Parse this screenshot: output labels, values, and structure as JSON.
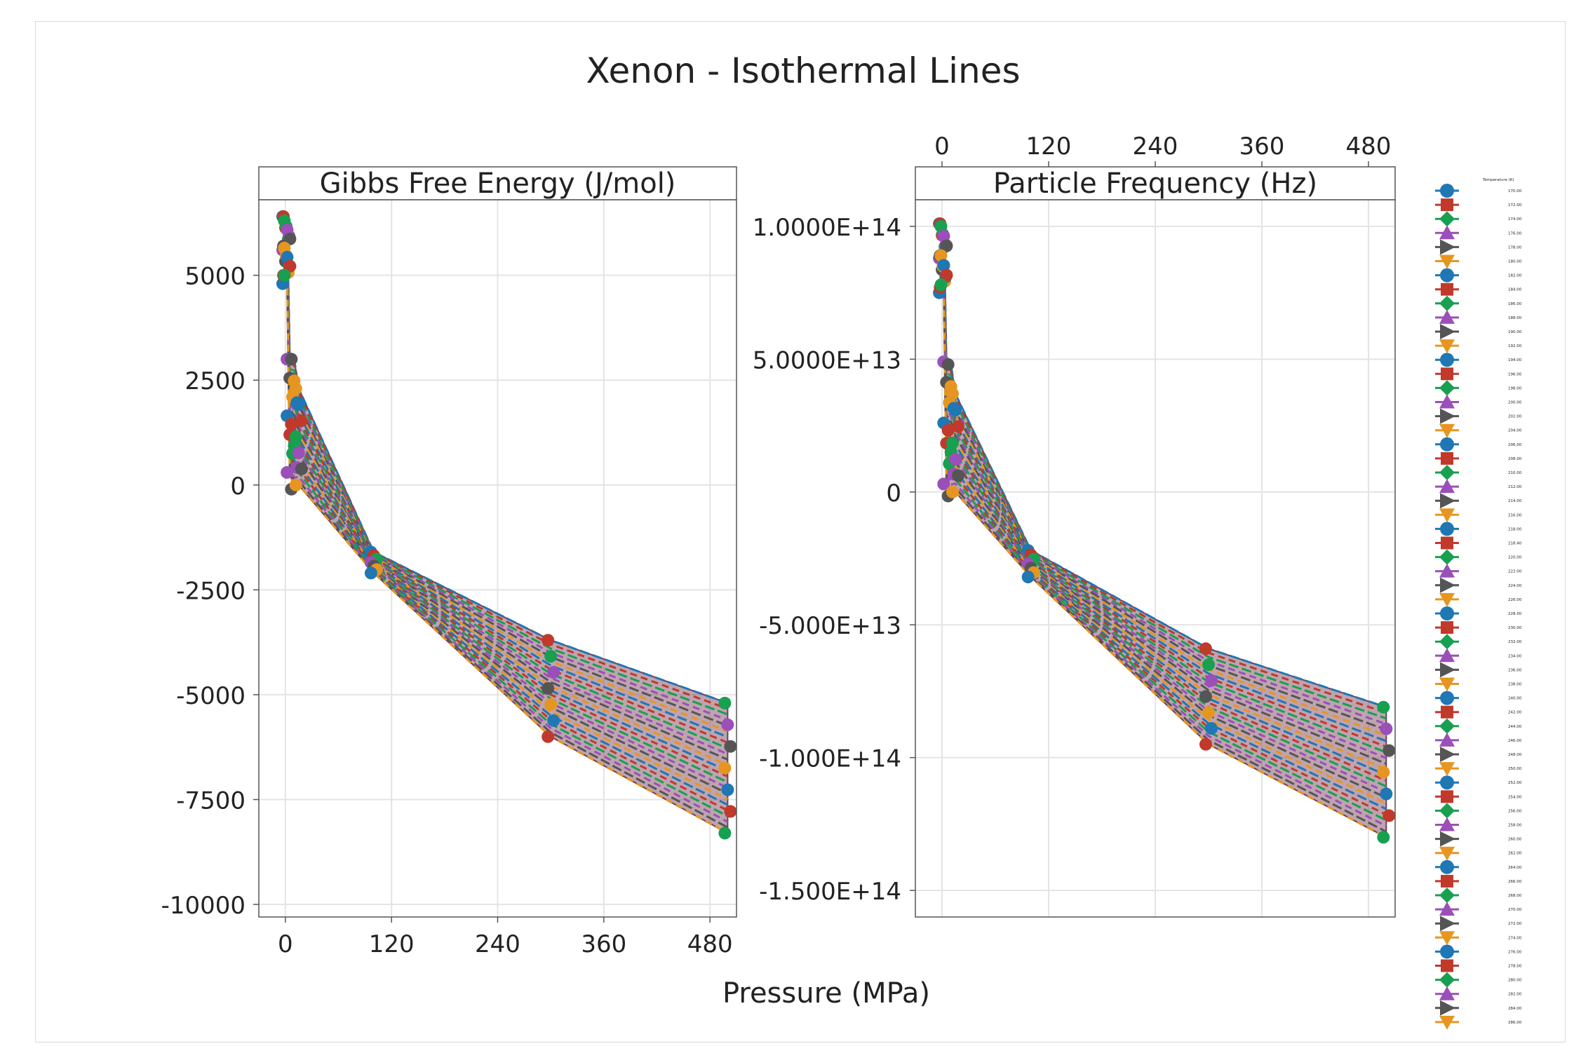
{
  "chart_data": {
    "type": "line",
    "title": "Xenon - Isothermal Lines",
    "xlabel": "Pressure (MPa)",
    "x_ticks": [
      0,
      120,
      240,
      360,
      480
    ],
    "xlim": [
      -30,
      510
    ],
    "pressure_points": [
      0.1,
      1,
      2,
      5,
      10,
      15,
      100,
      300,
      500
    ],
    "legend": {
      "title": "Temperature (K)",
      "entries": [
        "170.00",
        "172.00",
        "174.00",
        "176.00",
        "178.00",
        "180.00",
        "182.00",
        "184.00",
        "186.00",
        "188.00",
        "190.00",
        "192.00",
        "194.00",
        "196.00",
        "198.00",
        "200.00",
        "202.00",
        "204.00",
        "206.00",
        "208.00",
        "210.00",
        "212.00",
        "214.00",
        "216.00",
        "218.00",
        "218.40",
        "220.00",
        "222.00",
        "224.00",
        "226.00",
        "228.00",
        "230.00",
        "232.00",
        "234.00",
        "236.00",
        "238.00",
        "240.00",
        "242.00",
        "244.00",
        "246.00",
        "248.00",
        "250.00",
        "252.00",
        "254.00",
        "256.00",
        "258.00",
        "260.00",
        "262.00",
        "264.00",
        "266.00",
        "268.00",
        "270.00",
        "272.00",
        "274.00",
        "276.00",
        "278.00",
        "280.00",
        "282.00",
        "284.00",
        "286.00"
      ]
    },
    "panels": [
      {
        "title": "Gibbs Free Energy (J/mol)",
        "ylim": [
          -10300,
          6800
        ],
        "y_ticks": [
          -10000,
          -7500,
          -5000,
          -2500,
          0,
          2500,
          5000
        ],
        "y_tick_labels": [
          "-10000",
          "-7500",
          "-5000",
          "-2500",
          "0",
          "2500",
          "5000"
        ],
        "band_top": [
          6400,
          6400,
          6300,
          3000,
          3000,
          2300,
          -1600,
          -3700,
          -5200
        ],
        "band_bottom": [
          4800,
          5000,
          5000,
          300,
          -100,
          0,
          -2100,
          -6000,
          -8300
        ]
      },
      {
        "title": "Particle Frequency (Hz)",
        "ylim": [
          -160000000000000.0,
          110000000000000.0
        ],
        "y_ticks": [
          -150000000000000.0,
          -100000000000000.0,
          -50000000000000.0,
          0,
          50000000000000.0,
          100000000000000.0
        ],
        "y_tick_labels": [
          "-1.500E+14",
          "-1.000E+14",
          "-5.000E+13",
          "0",
          "5.0000E+13",
          "1.0000E+14"
        ],
        "band_top": [
          101000000000000.0,
          101000000000000.0,
          100000000000000.0,
          49000000000000.0,
          48000000000000.0,
          37000000000000.0,
          -22000000000000.0,
          -59000000000000.0,
          -81000000000000.0
        ],
        "band_bottom": [
          75000000000000.0,
          77000000000000.0,
          78000000000000.0,
          3000000000000.0,
          -1500000000000.0,
          0,
          -32000000000000.0,
          -95000000000000.0,
          -130000000000000.0
        ]
      }
    ],
    "series_colors": [
      "#1f77b4",
      "#c0392b",
      "#17a050",
      "#9b4fb8",
      "#555555",
      "#e69620"
    ]
  }
}
